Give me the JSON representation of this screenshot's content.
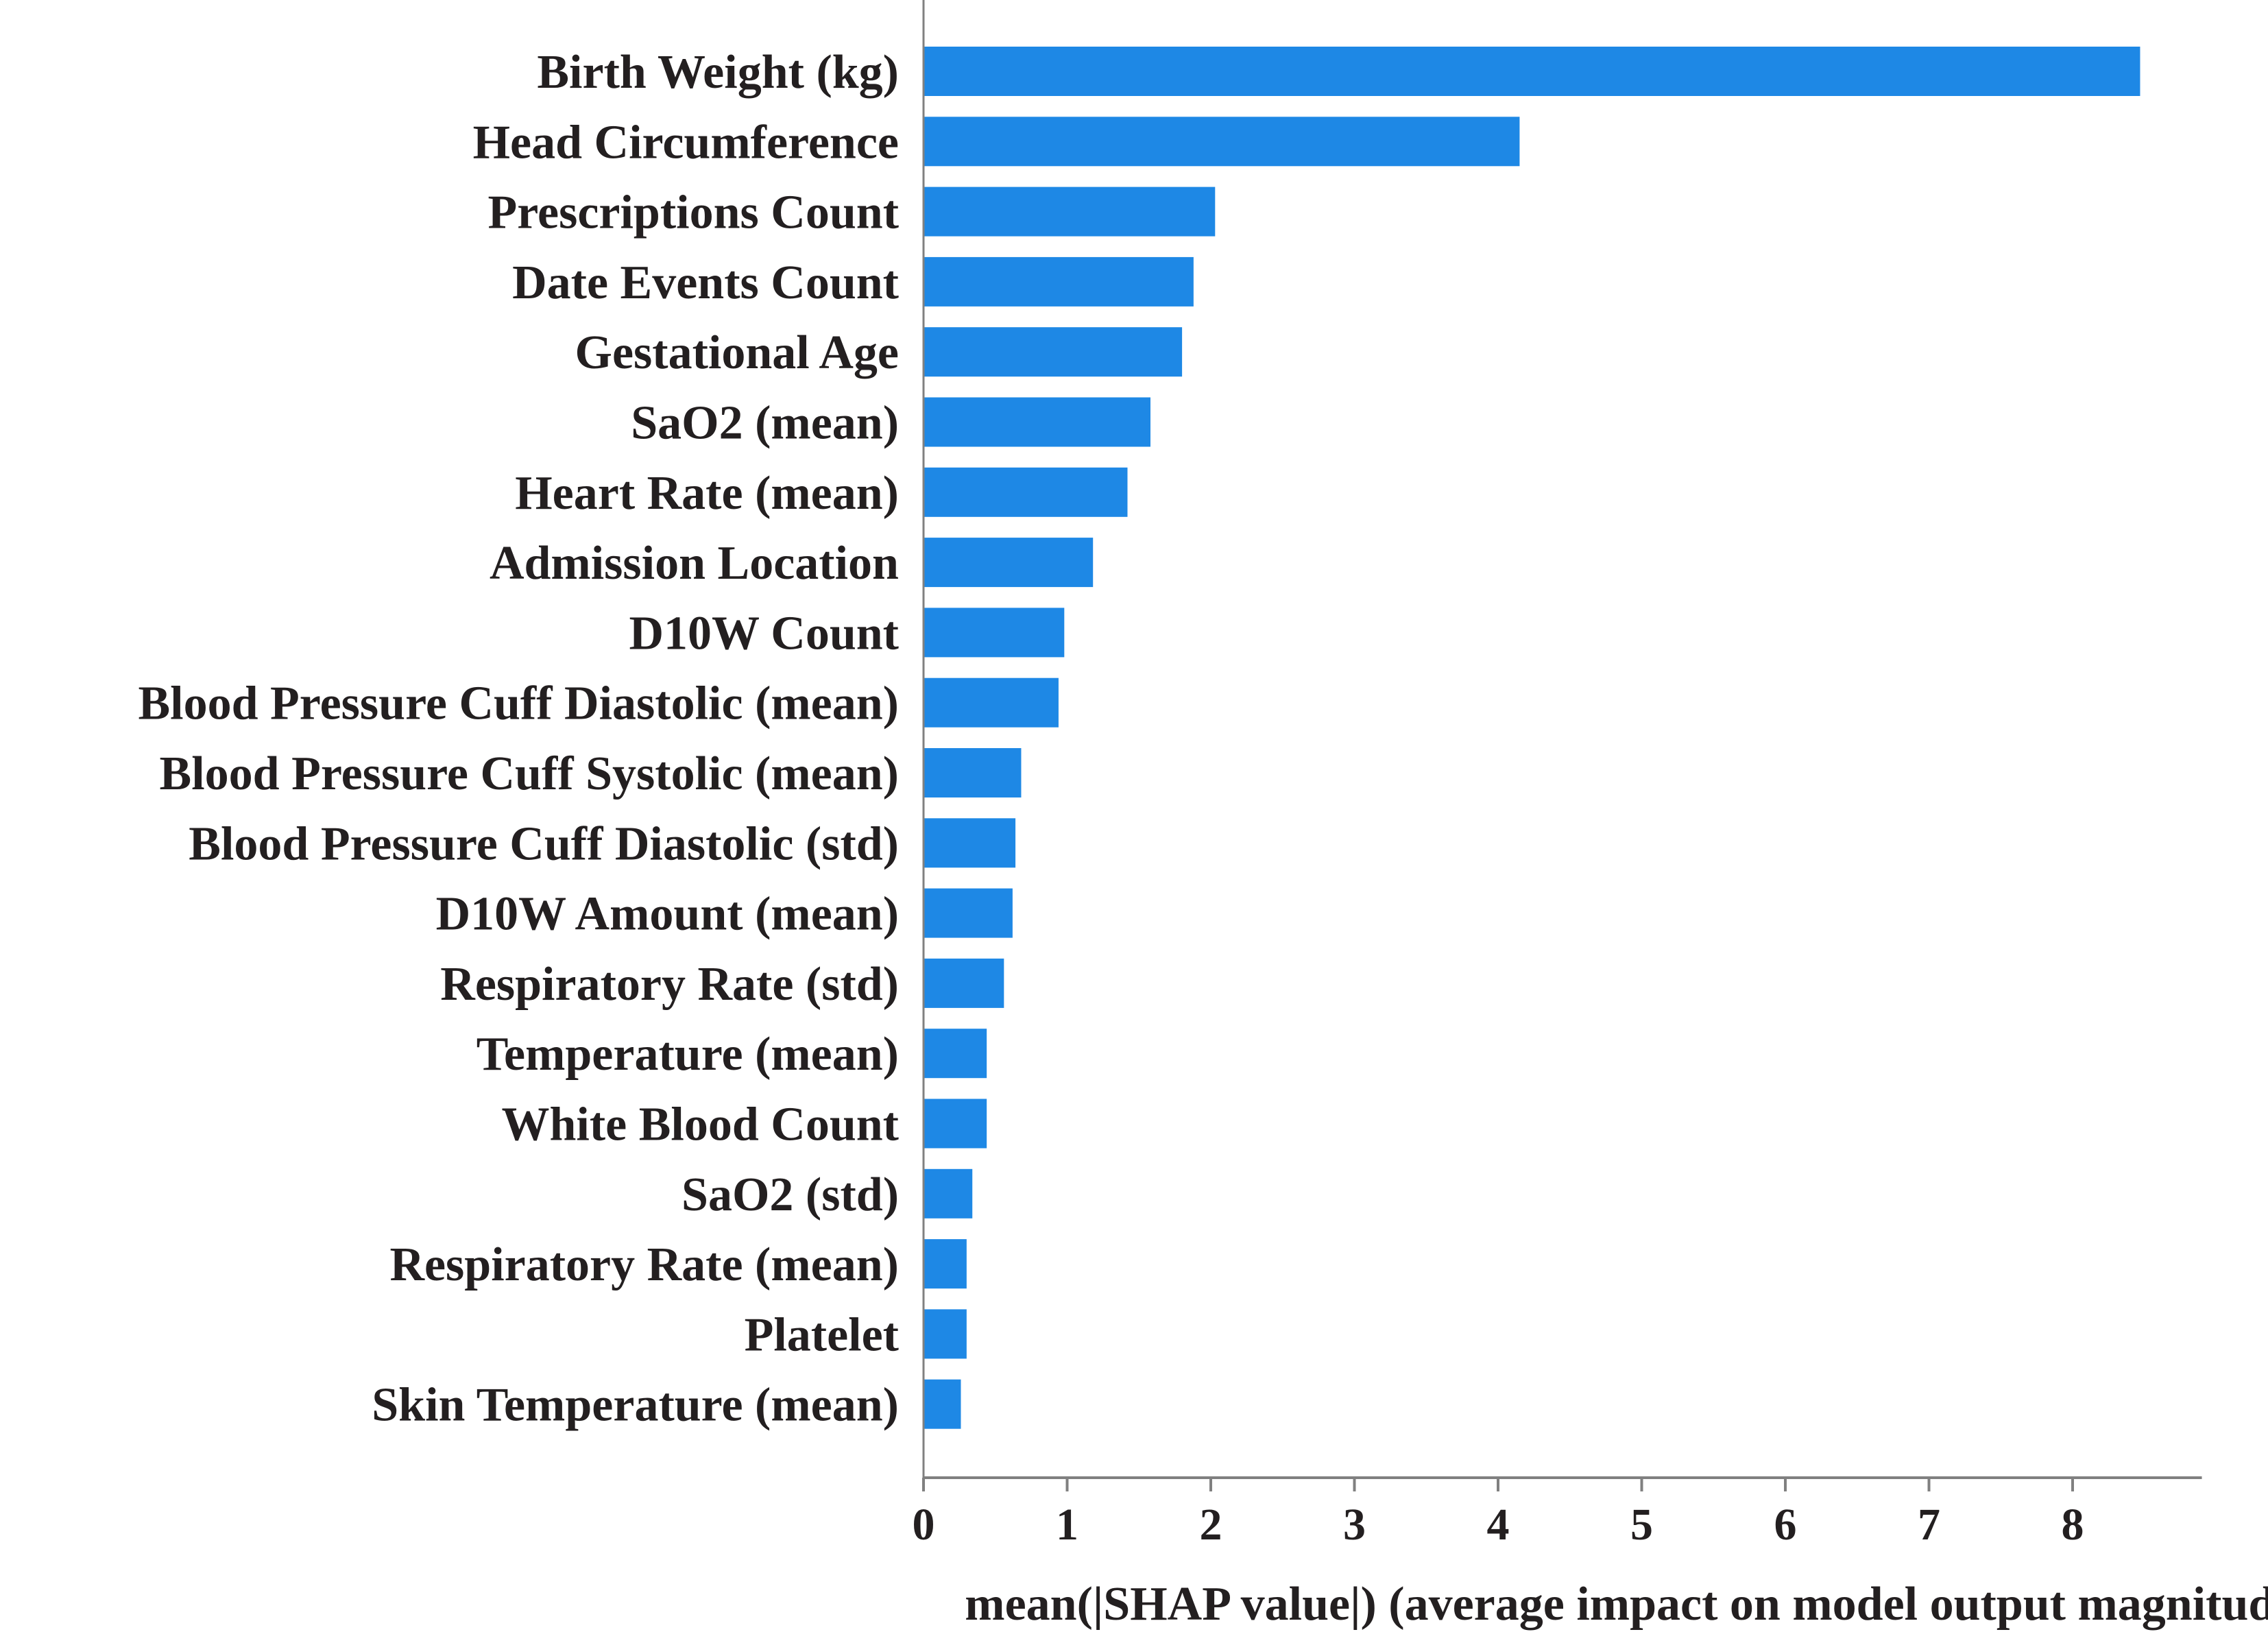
{
  "chart_data": {
    "type": "bar",
    "orientation": "horizontal",
    "categories": [
      "Birth Weight (kg)",
      "Head Circumference",
      "Prescriptions Count",
      "Date Events Count",
      "Gestational Age",
      "SaO2 (mean)",
      "Heart Rate (mean)",
      "Admission Location",
      "D10W Count",
      "Blood Pressure Cuff Diastolic (mean)",
      "Blood Pressure Cuff Systolic (mean)",
      "Blood Pressure Cuff Diastolic (std)",
      "D10W Amount (mean)",
      "Respiratory Rate (std)",
      "Temperature (mean)",
      "White Blood Count",
      "SaO2 (std)",
      "Respiratory Rate (mean)",
      "Platelet",
      "Skin Temperature (mean)"
    ],
    "values": [
      8.47,
      4.15,
      2.03,
      1.88,
      1.8,
      1.58,
      1.42,
      1.18,
      0.98,
      0.94,
      0.68,
      0.64,
      0.62,
      0.56,
      0.44,
      0.44,
      0.34,
      0.3,
      0.3,
      0.26
    ],
    "xlabel": "mean(|SHAP value|) (average impact on model output magnitude)",
    "ylabel": "",
    "xlim": [
      0,
      8.9
    ],
    "xticks": [
      "0",
      "1",
      "2",
      "3",
      "4",
      "5",
      "6",
      "7",
      "8"
    ],
    "grid": false,
    "bar_color": "#1e88e5",
    "axis_color": "#808080",
    "text_color": "#231f20"
  }
}
